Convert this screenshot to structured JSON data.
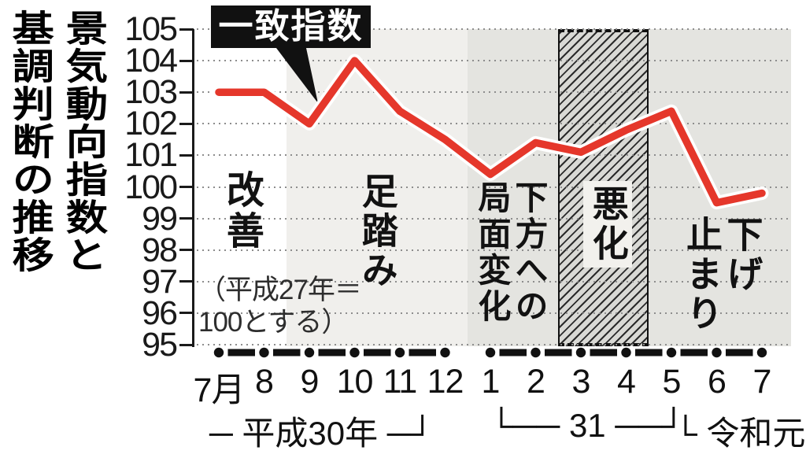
{
  "title": {
    "full": "景気動向指数と基調判断の推移",
    "line1": "景気動向指数と",
    "line2": "基調判断の推移"
  },
  "legend": {
    "label": "一致指数"
  },
  "note": {
    "line1": "（平成27年＝",
    "line2": "100とする）"
  },
  "y_axis": {
    "tick_labels": [
      "105",
      "104",
      "103",
      "102",
      "101",
      "100",
      "99",
      "98",
      "97",
      "96",
      "95"
    ]
  },
  "x_axis": {
    "month_labels": [
      "7月",
      "8",
      "9",
      "10",
      "11",
      "12",
      "1",
      "2",
      "3",
      "4",
      "5",
      "6",
      "7"
    ],
    "era_labels": [
      {
        "name": "heisei30",
        "text": "─ 平成30年 ─┘"
      },
      {
        "name": "heisei31",
        "text": "└── 31 ──┘"
      },
      {
        "name": "reiwa1",
        "text": "└ 令和元 ─"
      }
    ]
  },
  "chart_data": {
    "type": "line",
    "title": "景気動向指数と基調判断の推移",
    "series_name": "一致指数",
    "x_labels": [
      "7月",
      "8",
      "9",
      "10",
      "11",
      "12",
      "1",
      "2",
      "3",
      "4",
      "5",
      "6",
      "7"
    ],
    "values": [
      103.0,
      103.0,
      102.0,
      104.0,
      102.4,
      101.5,
      100.4,
      101.4,
      101.1,
      101.8,
      102.4,
      99.5,
      99.8
    ],
    "ylim": [
      95,
      105
    ],
    "y_ticks": [
      105,
      104,
      103,
      102,
      101,
      100,
      99,
      98,
      97,
      96,
      95
    ],
    "base_note": "平成27年＝100とする",
    "grid": "dotted-horizontal",
    "assessment_phases": [
      {
        "label": "改善",
        "lines": [
          "改善"
        ],
        "from_index": 0,
        "to_index": 1,
        "style": "plain"
      },
      {
        "label": "足踏み",
        "lines": [
          "足踏み"
        ],
        "from_index": 2,
        "to_index": 5,
        "style": "light"
      },
      {
        "label": "下方への局面変化",
        "lines": [
          "下方への",
          "局面変化"
        ],
        "from_index": 6,
        "to_index": 7,
        "style": "gray"
      },
      {
        "label": "悪化",
        "lines": [
          "悪化"
        ],
        "from_index": 8,
        "to_index": 9,
        "style": "hatched"
      },
      {
        "label": "下げ止まり",
        "lines": [
          "下げ",
          "止まり"
        ],
        "from_index": 10,
        "to_index": 12,
        "style": "gray"
      }
    ],
    "colors": {
      "line": "#e5372b",
      "line_casing": "#ffffff",
      "band_light": "#f0efec",
      "band_gray": "#e4e4e0",
      "hatch_base": "#d9d9d5",
      "axis": "#1a1a1a",
      "legend_bg": "#111111",
      "legend_text": "#ffffff"
    }
  }
}
